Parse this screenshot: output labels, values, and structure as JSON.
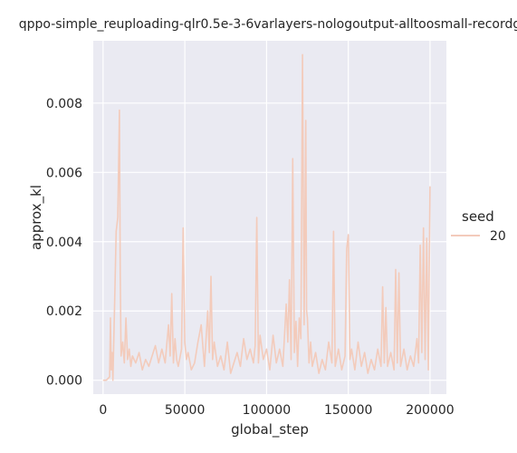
{
  "chart_data": {
    "type": "line",
    "title": "qppo-simple_reuploading-qlr0.5e-3-6varlayers-nologoutput-alltoosmall-recordg",
    "xlabel": "global_step",
    "ylabel": "approx_kl",
    "xlim": [
      -6000,
      210000
    ],
    "ylim": [
      -0.0004,
      0.0098
    ],
    "xticks": [
      0,
      50000,
      100000,
      150000,
      200000
    ],
    "xtick_labels": [
      "0",
      "50000",
      "100000",
      "150000",
      "200000"
    ],
    "yticks": [
      0.0,
      0.002,
      0.004,
      0.006,
      0.008
    ],
    "ytick_labels": [
      "0.000",
      "0.002",
      "0.004",
      "0.006",
      "0.008"
    ],
    "grid": true,
    "legend": {
      "title": "seed",
      "position": "right",
      "entries": [
        "20"
      ]
    },
    "colors": {
      "plot_bg": "#eaeaf2",
      "grid": "#ffffff",
      "line": "#f3cbbb"
    },
    "series": [
      {
        "name": "20",
        "x": [
          0,
          2000,
          4000,
          4500,
          5000,
          5500,
          6000,
          7000,
          8000,
          9000,
          10000,
          10500,
          11000,
          12000,
          13000,
          14000,
          15000,
          16000,
          17000,
          18000,
          20000,
          22000,
          24000,
          26000,
          28000,
          30000,
          32000,
          34000,
          36000,
          38000,
          40000,
          41000,
          42000,
          43000,
          44000,
          45000,
          46000,
          48000,
          49000,
          50000,
          51000,
          52000,
          54000,
          56000,
          58000,
          60000,
          62000,
          64000,
          65000,
          66000,
          67000,
          68000,
          70000,
          72000,
          74000,
          76000,
          78000,
          80000,
          82000,
          84000,
          86000,
          88000,
          90000,
          92000,
          93000,
          94000,
          95000,
          96000,
          98000,
          100000,
          102000,
          104000,
          106000,
          108000,
          110000,
          112000,
          113000,
          114000,
          115000,
          116000,
          117000,
          118000,
          119000,
          120000,
          121000,
          122000,
          123000,
          124000,
          124500,
          125000,
          126000,
          127000,
          128000,
          130000,
          132000,
          134000,
          136000,
          138000,
          140000,
          141000,
          142000,
          144000,
          146000,
          148000,
          149000,
          150000,
          151000,
          152000,
          154000,
          156000,
          158000,
          160000,
          162000,
          164000,
          166000,
          168000,
          170000,
          171000,
          172000,
          173000,
          174000,
          176000,
          178000,
          179000,
          180000,
          181000,
          182000,
          184000,
          186000,
          188000,
          190000,
          192000,
          193000,
          194000,
          195000,
          196000,
          197000,
          198000,
          199000,
          200000
        ],
        "values": [
          0.0,
          0.0,
          0.0001,
          0.0018,
          0.0003,
          0.0008,
          0.0,
          0.0021,
          0.0043,
          0.0047,
          0.0078,
          0.0031,
          0.0007,
          0.0011,
          0.0005,
          0.0018,
          0.0006,
          0.0009,
          0.0004,
          0.0007,
          0.0005,
          0.0008,
          0.0003,
          0.0006,
          0.0004,
          0.0007,
          0.001,
          0.0005,
          0.0009,
          0.0005,
          0.0016,
          0.0007,
          0.0025,
          0.0005,
          0.0012,
          0.0006,
          0.0004,
          0.0009,
          0.0044,
          0.0011,
          0.0006,
          0.0008,
          0.0003,
          0.0005,
          0.0011,
          0.0016,
          0.0004,
          0.002,
          0.0008,
          0.003,
          0.0006,
          0.0011,
          0.0004,
          0.0007,
          0.0003,
          0.0011,
          0.0002,
          0.0005,
          0.0008,
          0.0004,
          0.0012,
          0.0006,
          0.0009,
          0.0005,
          0.001,
          0.0047,
          0.0005,
          0.0013,
          0.0006,
          0.0009,
          0.0003,
          0.0013,
          0.0005,
          0.0009,
          0.0004,
          0.0022,
          0.0011,
          0.0029,
          0.0006,
          0.0064,
          0.0008,
          0.0017,
          0.0004,
          0.0018,
          0.0012,
          0.0094,
          0.0016,
          0.0075,
          0.002,
          0.0018,
          0.0005,
          0.0011,
          0.0004,
          0.0008,
          0.0002,
          0.0006,
          0.0003,
          0.0011,
          0.0005,
          0.0043,
          0.0004,
          0.0009,
          0.0003,
          0.0007,
          0.0038,
          0.0042,
          0.0006,
          0.0009,
          0.0003,
          0.0011,
          0.0004,
          0.0008,
          0.0002,
          0.0006,
          0.0003,
          0.0009,
          0.0004,
          0.0027,
          0.0005,
          0.0021,
          0.0004,
          0.0008,
          0.0003,
          0.0032,
          0.0005,
          0.0031,
          0.0004,
          0.0009,
          0.0003,
          0.0007,
          0.0004,
          0.0012,
          0.0005,
          0.0039,
          0.0008,
          0.0044,
          0.0006,
          0.0041,
          0.0003,
          0.0056
        ]
      }
    ]
  }
}
